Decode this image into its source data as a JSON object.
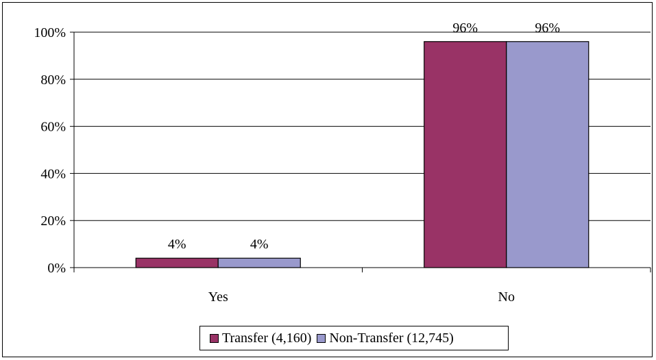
{
  "chart_data": {
    "type": "bar",
    "categories": [
      "Yes",
      "No"
    ],
    "series": [
      {
        "name": "Transfer (4,160)",
        "values": [
          4,
          96
        ],
        "color": "#993366"
      },
      {
        "name": "Non-Transfer (12,745)",
        "values": [
          4,
          96
        ],
        "color": "#9999cc"
      }
    ],
    "data_labels": [
      [
        "4%",
        "96%"
      ],
      [
        "4%",
        "96%"
      ]
    ],
    "ylim": [
      0,
      100
    ],
    "yticks": [
      0,
      20,
      40,
      60,
      80,
      100
    ],
    "ytick_labels": [
      "0%",
      "20%",
      "40%",
      "60%",
      "80%",
      "100%"
    ],
    "grid": true,
    "legend_position": "bottom",
    "title": "",
    "xlabel": "",
    "ylabel": ""
  }
}
